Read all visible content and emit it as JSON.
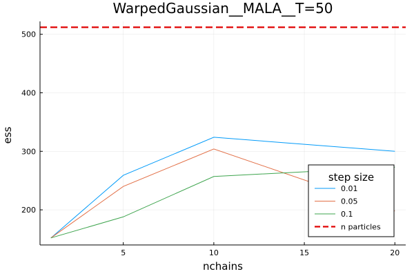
{
  "chart_data": {
    "type": "line",
    "title": "WarpedGaussian__MALA__T=50",
    "xlabel": "nchains",
    "ylabel": "ess",
    "xlim": [
      0.4,
      20.6
    ],
    "ylim": [
      140,
      522
    ],
    "xticks": [
      5,
      10,
      15,
      20
    ],
    "yticks": [
      200,
      300,
      400,
      500
    ],
    "grid": true,
    "legend": {
      "title": "step size",
      "placement": "bottom-right"
    },
    "series": [
      {
        "name": "0.01",
        "color": "#009af9",
        "x": [
          1,
          5,
          10,
          20
        ],
        "y": [
          152,
          259,
          324,
          300
        ]
      },
      {
        "name": "0.05",
        "color": "#e26f46",
        "x": [
          1,
          5,
          10,
          20
        ],
        "y": [
          152,
          240,
          304,
          198
        ]
      },
      {
        "name": "0.1",
        "color": "#3da44d",
        "x": [
          1,
          5,
          10,
          20
        ],
        "y": [
          152,
          188,
          257,
          273
        ]
      }
    ],
    "reference_lines": [
      {
        "name": "n particles",
        "color": "#e00000",
        "y": 512,
        "style": "dashed"
      }
    ]
  }
}
